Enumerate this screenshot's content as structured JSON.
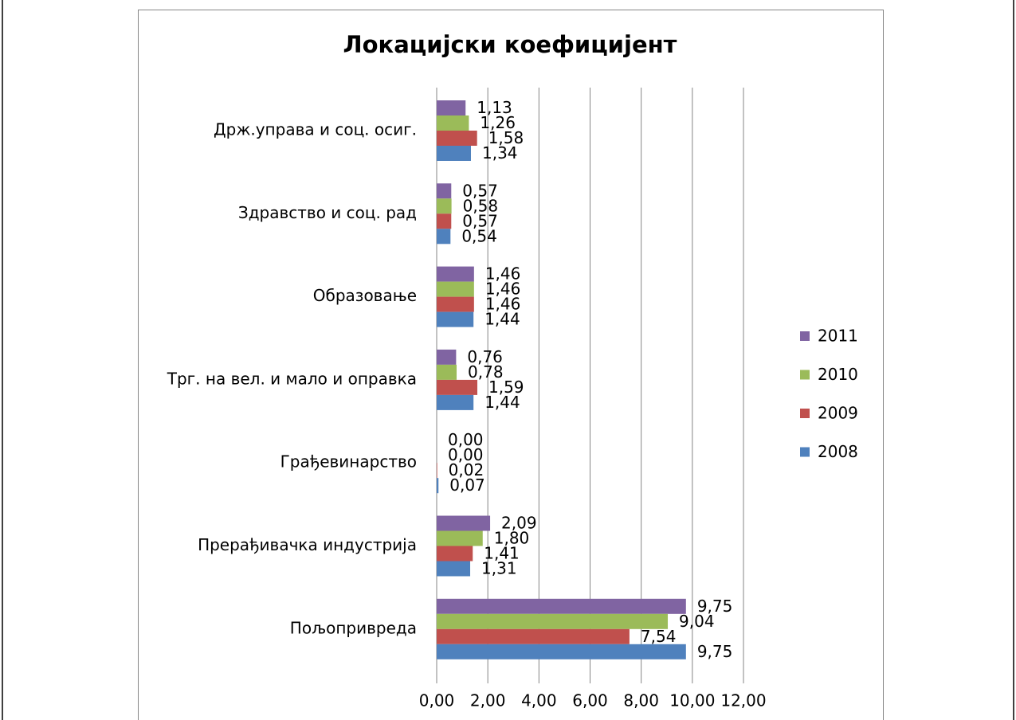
{
  "chart_data": {
    "type": "bar",
    "orientation": "horizontal",
    "title": "Локацијски коефицијент",
    "categories": [
      "Држ.управа и соц. осиг.",
      "Здравство и соц. рад",
      "Образовање",
      "Трг. на вел. и мало и оправка",
      "Грађевинарство",
      "Прерађивачка индустрија",
      "Пољопривреда"
    ],
    "series": [
      {
        "name": "2011",
        "color": "#8064a2",
        "values": [
          1.13,
          0.57,
          1.46,
          0.76,
          0,
          2.09,
          9.75
        ],
        "value_labels": [
          "1,13",
          "0,57",
          "1,46",
          "0,76",
          "0,00",
          "2,09",
          "9,75"
        ]
      },
      {
        "name": "2010",
        "color": "#9bbb59",
        "values": [
          1.26,
          0.58,
          1.46,
          0.78,
          0,
          1.8,
          9.04
        ],
        "value_labels": [
          "1,26",
          "0,58",
          "1,46",
          "0,78",
          "0,00",
          "1,80",
          "9,04"
        ]
      },
      {
        "name": "2009",
        "color": "#c0504d",
        "values": [
          1.58,
          0.57,
          1.46,
          1.59,
          0.02,
          1.41,
          7.54
        ],
        "value_labels": [
          "1,58",
          "0,57",
          "1,46",
          "1,59",
          "0,02",
          "1,41",
          "7,54"
        ]
      },
      {
        "name": "2008",
        "color": "#4f81bd",
        "values": [
          1.34,
          0.54,
          1.44,
          1.44,
          0.07,
          1.31,
          9.75
        ],
        "value_labels": [
          "1,34",
          "0,54",
          "1,44",
          "1,44",
          "0,07",
          "1,31",
          "9,75"
        ]
      }
    ],
    "xlim": [
      0,
      12
    ],
    "xticks": [
      {
        "value": 0,
        "label": "0,00"
      },
      {
        "value": 2,
        "label": "2,00"
      },
      {
        "value": 4,
        "label": "4,00"
      },
      {
        "value": 6,
        "label": "6,00"
      },
      {
        "value": 8,
        "label": "8,00"
      },
      {
        "value": 10,
        "label": "10,00"
      },
      {
        "value": 12,
        "label": "12,00"
      }
    ],
    "grid": true,
    "legend": "right"
  }
}
